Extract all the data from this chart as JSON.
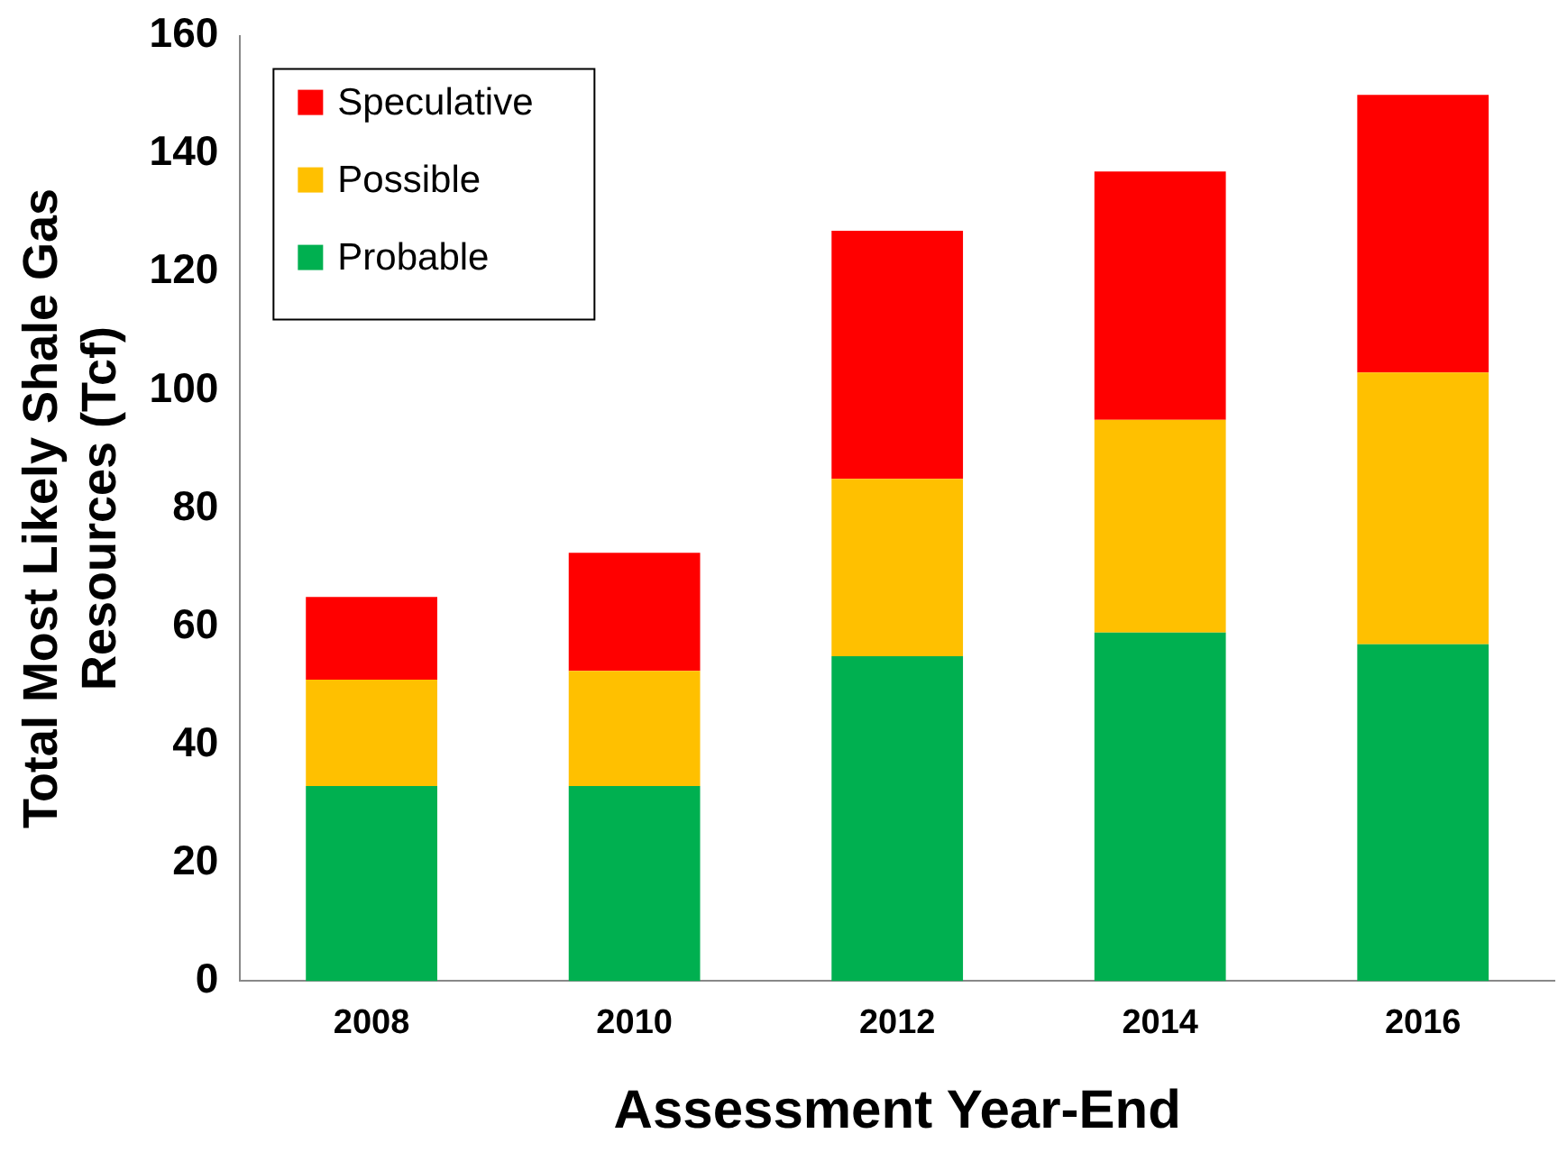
{
  "chart_data": {
    "type": "bar",
    "stacked": true,
    "xlabel": "Assessment Year-End",
    "ylabel": "Total Most Likely Shale Gas\nResources (Tcf)",
    "categories": [
      "2008",
      "2010",
      "2012",
      "2014",
      "2016"
    ],
    "series": [
      {
        "name": "Probable",
        "color": "#00b050",
        "values": [
          33,
          33,
          55,
          59,
          57
        ]
      },
      {
        "name": "Possible",
        "color": "#ffc000",
        "values": [
          18,
          19.5,
          30,
          36,
          46
        ]
      },
      {
        "name": "Speculative",
        "color": "#ff0000",
        "values": [
          14,
          20,
          42,
          42,
          47
        ]
      }
    ],
    "ylim": [
      0,
      160
    ],
    "yticks": [
      0,
      20,
      40,
      60,
      80,
      100,
      120,
      140,
      160
    ],
    "grid": false,
    "legend": "top left"
  }
}
